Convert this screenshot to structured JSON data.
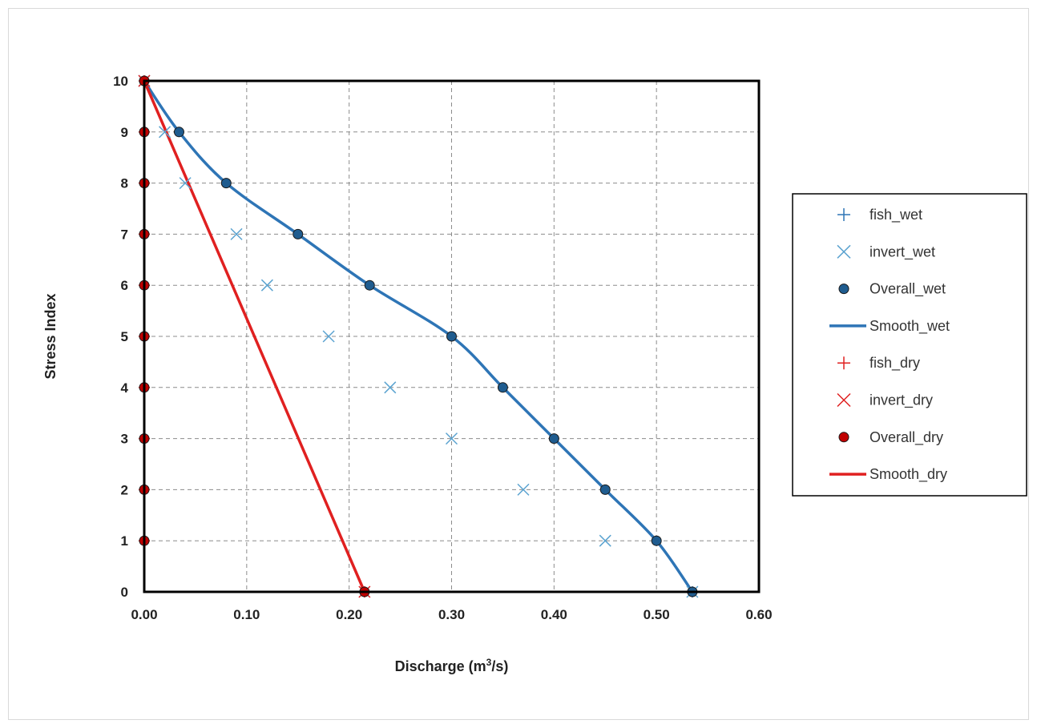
{
  "chart_data": {
    "type": "scatter",
    "title": "",
    "xlabel": "Discharge (m",
    "xlabel_sup": "3",
    "xlabel_tail": "/s)",
    "ylabel": "Stress Index",
    "xlim": [
      0,
      0.6
    ],
    "ylim": [
      0,
      10
    ],
    "x_ticks": [
      0,
      0.1,
      0.2,
      0.3,
      0.4,
      0.5,
      0.6
    ],
    "x_tick_labels": [
      "0.00",
      "0.10",
      "0.20",
      "0.30",
      "0.40",
      "0.50",
      "0.60"
    ],
    "y_ticks": [
      0,
      1,
      2,
      3,
      4,
      5,
      6,
      7,
      8,
      9,
      10
    ],
    "y_tick_labels": [
      "0",
      "1",
      "2",
      "3",
      "4",
      "5",
      "6",
      "7",
      "8",
      "9",
      "10"
    ],
    "grid": true,
    "legend_position": "right",
    "colors": {
      "wet": "#2e75b6",
      "wet_marker": "#1f5c8f",
      "dry": "#e02020",
      "dry_marker": "#c00000"
    },
    "series": [
      {
        "name": "fish_wet",
        "kind": "marker",
        "marker": "plus",
        "color": "#2e75b6",
        "points": [
          [
            0,
            10
          ],
          [
            0.535,
            0
          ]
        ]
      },
      {
        "name": "invert_wet",
        "kind": "marker",
        "marker": "x",
        "color": "#5ba3d0",
        "points": [
          [
            0,
            10
          ],
          [
            0.02,
            9
          ],
          [
            0.04,
            8
          ],
          [
            0.09,
            7
          ],
          [
            0.12,
            6
          ],
          [
            0.18,
            5
          ],
          [
            0.24,
            4
          ],
          [
            0.3,
            3
          ],
          [
            0.37,
            2
          ],
          [
            0.45,
            1
          ],
          [
            0.535,
            0
          ]
        ]
      },
      {
        "name": "Overall_wet",
        "kind": "marker",
        "marker": "circle",
        "color": "#1f5c8f",
        "points": [
          [
            0,
            10
          ],
          [
            0.034,
            9
          ],
          [
            0.08,
            8
          ],
          [
            0.15,
            7
          ],
          [
            0.22,
            6
          ],
          [
            0.3,
            5
          ],
          [
            0.35,
            4
          ],
          [
            0.4,
            3
          ],
          [
            0.45,
            2
          ],
          [
            0.5,
            1
          ],
          [
            0.535,
            0
          ]
        ]
      },
      {
        "name": "Smooth_wet",
        "kind": "line",
        "color": "#2e75b6",
        "points": [
          [
            0,
            10
          ],
          [
            0.034,
            9
          ],
          [
            0.08,
            8
          ],
          [
            0.15,
            7
          ],
          [
            0.22,
            6
          ],
          [
            0.3,
            5
          ],
          [
            0.35,
            4
          ],
          [
            0.4,
            3
          ],
          [
            0.45,
            2
          ],
          [
            0.5,
            1
          ],
          [
            0.535,
            0
          ]
        ]
      },
      {
        "name": "fish_dry",
        "kind": "marker",
        "marker": "plus",
        "color": "#e02020",
        "points": [
          [
            0,
            10
          ],
          [
            0,
            9
          ],
          [
            0,
            8
          ],
          [
            0,
            7
          ],
          [
            0,
            6
          ],
          [
            0,
            5
          ],
          [
            0,
            4
          ],
          [
            0,
            3
          ],
          [
            0,
            2
          ],
          [
            0,
            1
          ],
          [
            0.215,
            0
          ]
        ]
      },
      {
        "name": "invert_dry",
        "kind": "marker",
        "marker": "x",
        "color": "#e02020",
        "points": [
          [
            0,
            10
          ],
          [
            0.215,
            0
          ]
        ]
      },
      {
        "name": "Overall_dry",
        "kind": "marker",
        "marker": "circle",
        "color": "#c00000",
        "points": [
          [
            0,
            10
          ],
          [
            0,
            9
          ],
          [
            0,
            8
          ],
          [
            0,
            7
          ],
          [
            0,
            6
          ],
          [
            0,
            5
          ],
          [
            0,
            4
          ],
          [
            0,
            3
          ],
          [
            0,
            2
          ],
          [
            0,
            1
          ],
          [
            0.215,
            0
          ]
        ]
      },
      {
        "name": "Smooth_dry",
        "kind": "line",
        "color": "#e02020",
        "points": [
          [
            0,
            10
          ],
          [
            0.215,
            0
          ]
        ]
      }
    ]
  }
}
